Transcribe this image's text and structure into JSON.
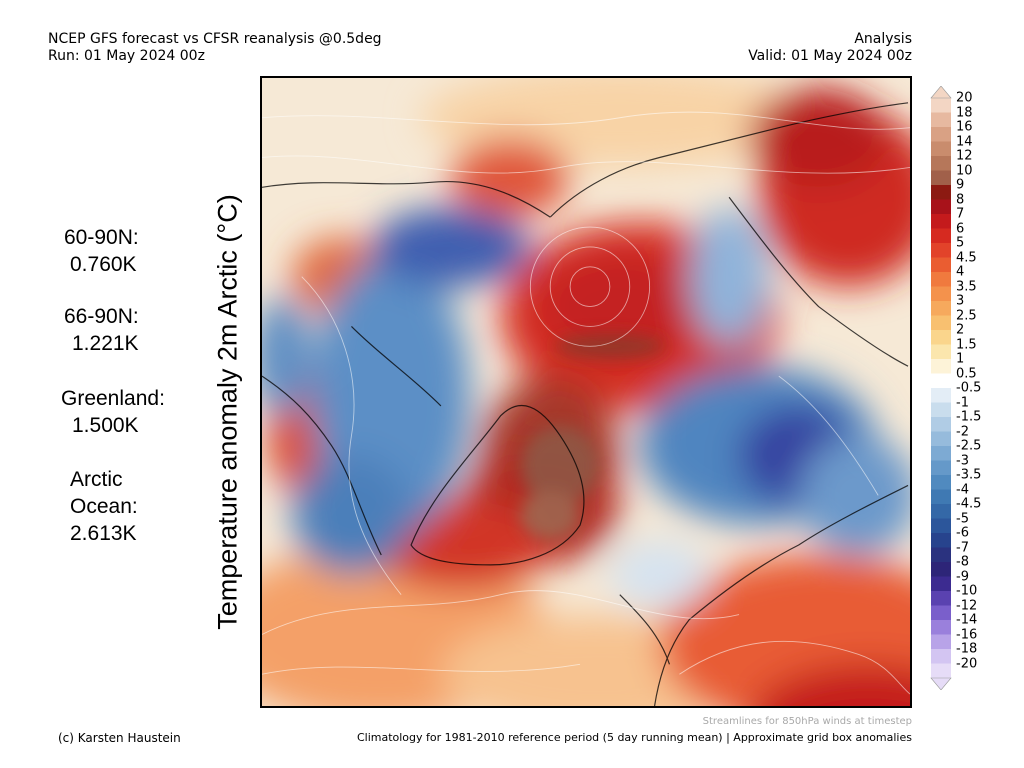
{
  "header": {
    "left_line1": "NCEP GFS forecast vs CFSR reanalysis @0.5deg",
    "left_line2": "Run: 01 May 2024 00z",
    "right_line1": "Analysis",
    "right_line2": "Valid: 01 May 2024 00z"
  },
  "ylabel": "Temperature anomaly 2m Arctic (°C)",
  "stats": [
    {
      "label": "60-90N:",
      "value": "0.760K"
    },
    {
      "label": "66-90N:",
      "value": "1.221K"
    },
    {
      "label": "Greenland:",
      "value": "1.500K"
    },
    {
      "label": "Arctic",
      "label2": "Ocean:",
      "value": "2.613K"
    }
  ],
  "colorbar": {
    "labels": [
      "20",
      "18",
      "16",
      "14",
      "12",
      "10",
      "9",
      "8",
      "7",
      "6",
      "5",
      "4.5",
      "4",
      "3.5",
      "3",
      "2.5",
      "2",
      "1.5",
      "1",
      "0.5",
      "-0.5",
      "-1",
      "-1.5",
      "-2",
      "-2.5",
      "-3",
      "-3.5",
      "-4",
      "-4.5",
      "-5",
      "-6",
      "-7",
      "-8",
      "-9",
      "-10",
      "-12",
      "-14",
      "-16",
      "-18",
      "-20"
    ],
    "colors": [
      "#f3d6c4",
      "#e7b9a0",
      "#d9a184",
      "#c98c6d",
      "#b6775a",
      "#a1604a",
      "#8c1a12",
      "#a8121a",
      "#c41a1c",
      "#d62a20",
      "#e2432a",
      "#ea5d31",
      "#f07a3e",
      "#f4924c",
      "#f6a95d",
      "#f8c070",
      "#fad58c",
      "#fbe6ad",
      "#fdf3d8",
      "#ffffff",
      "#e3edf6",
      "#c9dded",
      "#b0cce5",
      "#96bbdc",
      "#7daad3",
      "#6599c9",
      "#508abf",
      "#3f79b3",
      "#3468a7",
      "#2c569b",
      "#27438d",
      "#2a327f",
      "#2d2578",
      "#3c2b90",
      "#5a42b0",
      "#7a5fcb",
      "#9a80dc",
      "#b8a3e8",
      "#d3c5f2",
      "#e6dcf7"
    ]
  },
  "footer": {
    "copyright": "(c) Karsten Haustein",
    "streamlines": "Streamlines for 850hPa winds at timestep",
    "climatology": "Climatology for 1981-2010 reference period (5 day running mean) | Approximate grid box anomalies"
  }
}
